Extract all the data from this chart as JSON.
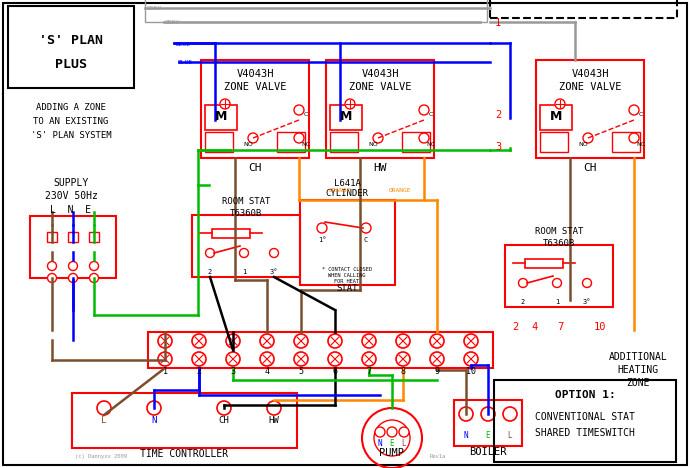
{
  "bg_color": "#ffffff",
  "red": "#ff0000",
  "blue": "#0000ff",
  "green": "#00bb00",
  "grey": "#999999",
  "orange": "#ff8800",
  "brown": "#7B4F2E",
  "black": "#000000",
  "title1": "'S' PLAN",
  "title2": "PLUS",
  "subtitle1": "ADDING A ZONE",
  "subtitle2": "TO AN EXISTING",
  "subtitle3": "'S' PLAN SYSTEM",
  "supply1": "SUPPLY",
  "supply2": "230V 50Hz",
  "lne": "L  N  E"
}
